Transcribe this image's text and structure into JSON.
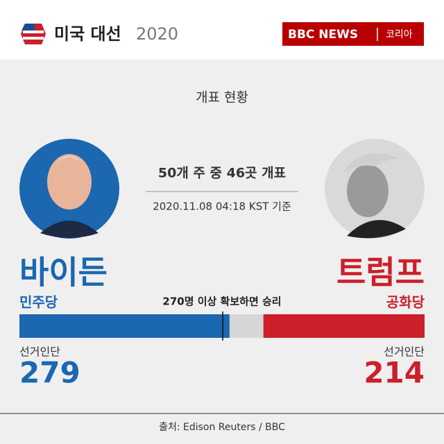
{
  "header": {
    "title": "미국 대선",
    "year": "2020",
    "brand": "BBC NEWS",
    "edition": "코리아"
  },
  "chart_data": {
    "type": "tug-bar",
    "title": "개표 현황",
    "subtitle": "50개 주 중 46곳 개표",
    "timestamp": "2020.11.08 04:18 KST 기준",
    "value_label": "선거인단",
    "xlim": [
      0,
      538
    ],
    "threshold": {
      "value": 270,
      "label": "270명 이상 확보하면 승리"
    },
    "remainder_color": "#d6d6d6",
    "series": [
      {
        "name": "바이든",
        "party": "민주당",
        "color": "#1b67b0",
        "value": 279
      },
      {
        "name": "트럼프",
        "party": "공화당",
        "color": "#cc1f2a",
        "value": 214
      }
    ]
  },
  "footer": {
    "source": "출처: Edison Reuters / BBC"
  }
}
